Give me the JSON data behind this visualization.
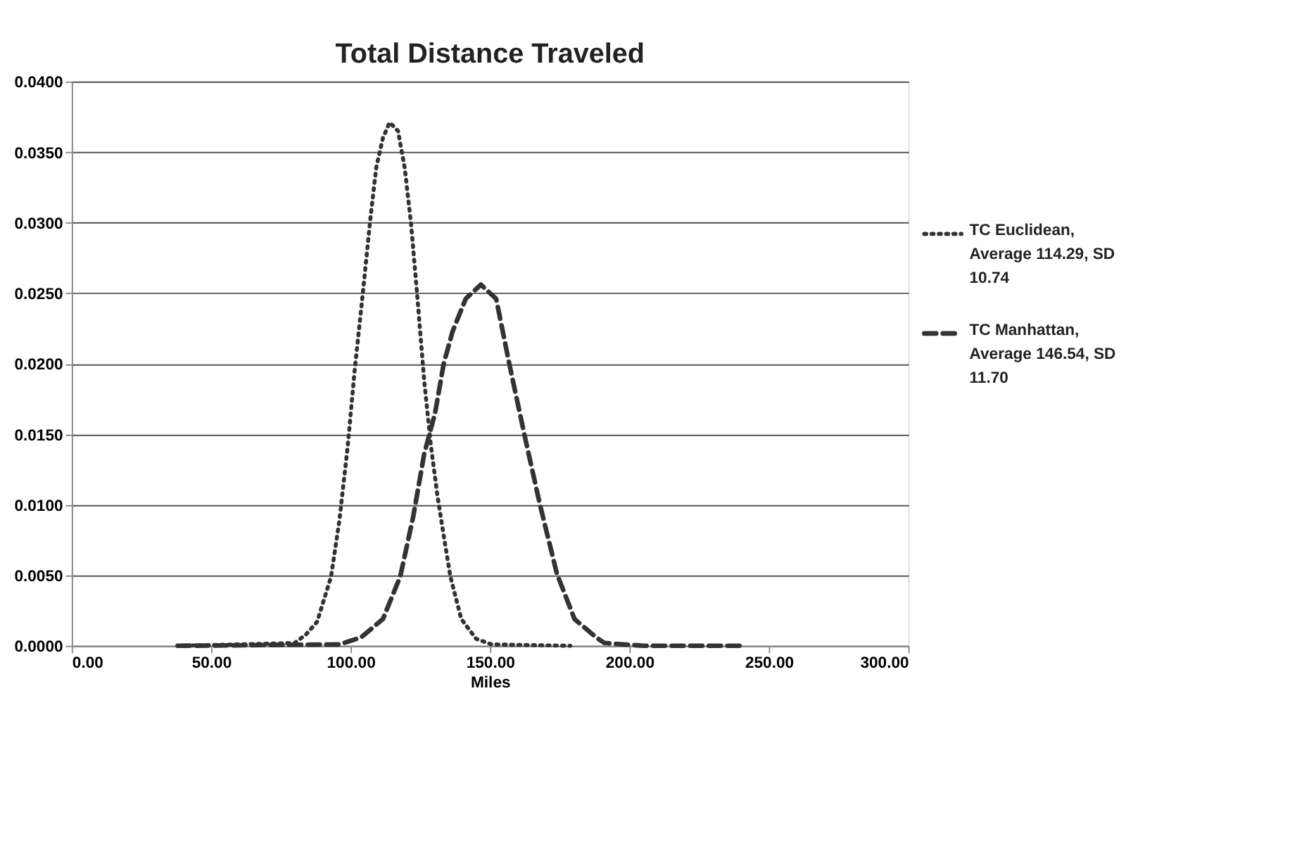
{
  "chart_data": {
    "type": "line",
    "title": "Total Distance Traveled",
    "xlabel": "Miles",
    "xlim": [
      0,
      300
    ],
    "ylim": [
      0,
      0.04
    ],
    "xticks": [
      {
        "value": 0,
        "label": "0.00"
      },
      {
        "value": 50,
        "label": "50.00"
      },
      {
        "value": 100,
        "label": "100.00"
      },
      {
        "value": 150,
        "label": "150.00"
      },
      {
        "value": 200,
        "label": "200.00"
      },
      {
        "value": 250,
        "label": "250.00"
      },
      {
        "value": 300,
        "label": "300.00"
      }
    ],
    "yticks": [
      {
        "value": 0,
        "label": "0.0000"
      },
      {
        "value": 0.005,
        "label": "0.0050"
      },
      {
        "value": 0.01,
        "label": "0.0100"
      },
      {
        "value": 0.015,
        "label": "0.0150"
      },
      {
        "value": 0.02,
        "label": "0.0200"
      },
      {
        "value": 0.025,
        "label": "0.0250"
      },
      {
        "value": 0.03,
        "label": "0.0300"
      },
      {
        "value": 0.035,
        "label": "0.0350"
      },
      {
        "value": 0.04,
        "label": "0.0400"
      }
    ],
    "grid": "y",
    "legend": "right",
    "marker": "none",
    "series": [
      {
        "name": "TC Euclidean, Average 114.29, SD 10.74",
        "color": "#333333",
        "line_style": "dotted",
        "x": [
          38,
          80,
          84,
          88,
          93,
          96,
          99,
          101.4,
          104.5,
          107,
          109.2,
          111.6,
          114,
          117,
          119.4,
          121.7,
          124,
          126.4,
          128.8,
          131.1,
          133.4,
          135.8,
          139.7,
          145,
          150.6,
          178.8
        ],
        "values": [
          0,
          0.0002,
          0.0008,
          0.0017,
          0.0049,
          0.0089,
          0.0142,
          0.0194,
          0.0252,
          0.0301,
          0.0339,
          0.036,
          0.0371,
          0.0365,
          0.0339,
          0.0299,
          0.0246,
          0.0188,
          0.0142,
          0.0107,
          0.0078,
          0.0049,
          0.0019,
          0.0005,
          0.0001,
          0
        ]
      },
      {
        "name": "TC Manhattan, Average 146.54, SD 11.70",
        "color": "#333333",
        "line_style": "dashed",
        "x": [
          38,
          96,
          103.8,
          111.6,
          117.8,
          122.5,
          126.4,
          130.3,
          133.4,
          136.6,
          141.3,
          146.7,
          152.2,
          156.9,
          162.3,
          167.8,
          174,
          180.3,
          188,
          191,
          205,
          239.6
        ],
        "values": [
          0,
          0.0001,
          0.0006,
          0.0019,
          0.0049,
          0.0092,
          0.0136,
          0.0165,
          0.02,
          0.0223,
          0.0246,
          0.0256,
          0.0246,
          0.02,
          0.015,
          0.0101,
          0.0051,
          0.0019,
          0.0006,
          0.0002,
          0,
          0
        ]
      }
    ]
  }
}
